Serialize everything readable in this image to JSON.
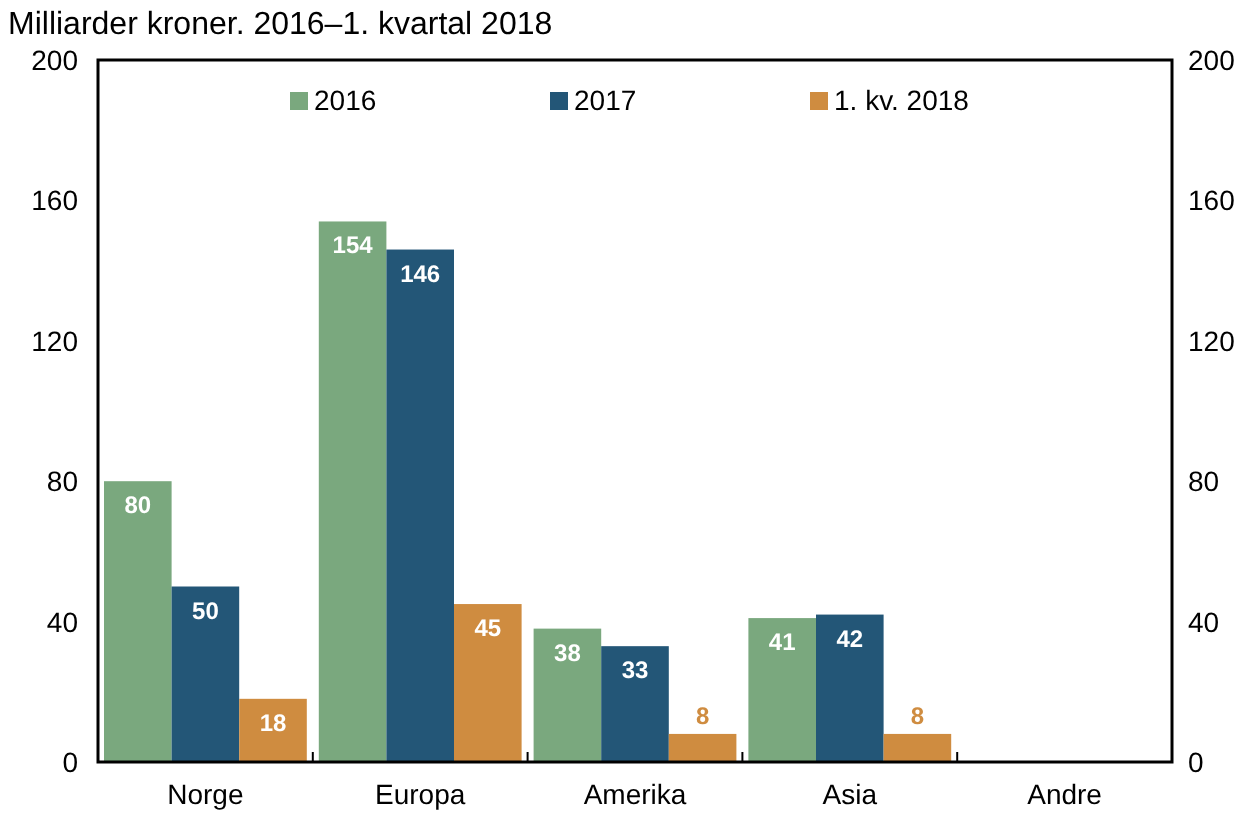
{
  "chart_data": {
    "type": "bar",
    "title": "Milliarder kroner. 2016–1. kvartal 2018",
    "categories": [
      "Norge",
      "Europa",
      "Amerika",
      "Asia",
      "Andre"
    ],
    "series": [
      {
        "name": "2016",
        "color": "#7aa87e",
        "values": [
          80,
          154,
          38,
          41,
          null
        ]
      },
      {
        "name": "2017",
        "color": "#235677",
        "values": [
          50,
          146,
          33,
          42,
          null
        ]
      },
      {
        "name": "1. kv. 2018",
        "color": "#cf8c40",
        "values": [
          18,
          45,
          8,
          8,
          null
        ]
      }
    ],
    "ylim": [
      0,
      200
    ],
    "yticks": [
      0,
      40,
      80,
      120,
      160,
      200
    ],
    "y2lim": [
      0,
      200
    ],
    "y2ticks": [
      0,
      40,
      80,
      120,
      160,
      200
    ],
    "data_labels": true,
    "legend": "top",
    "grid": false
  }
}
